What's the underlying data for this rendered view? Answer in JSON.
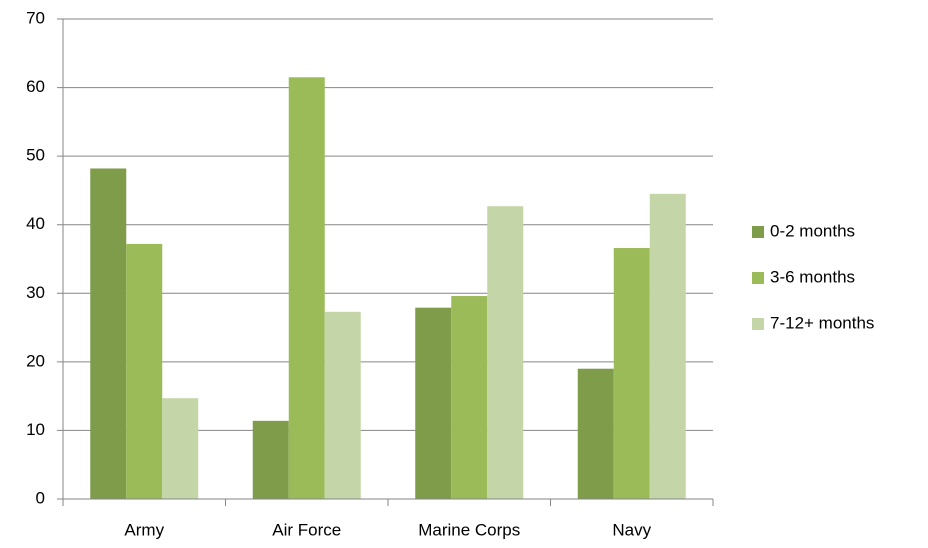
{
  "chart_data": {
    "type": "bar",
    "categories": [
      "Army",
      "Air Force",
      "Marine Corps",
      "Navy"
    ],
    "series": [
      {
        "name": "0-2 months",
        "color": "#7f9c4b",
        "values": [
          48.2,
          11.4,
          27.9,
          19.0
        ]
      },
      {
        "name": "3-6 months",
        "color": "#9bbb59",
        "values": [
          37.2,
          61.5,
          29.6,
          36.6
        ]
      },
      {
        "name": "7-12+ months",
        "color": "#c4d6a8",
        "values": [
          14.7,
          27.3,
          42.7,
          44.5
        ]
      }
    ],
    "ylim": [
      0,
      70
    ],
    "yticks": [
      0,
      10,
      20,
      30,
      40,
      50,
      60,
      70
    ],
    "grid": true,
    "legend": "right"
  }
}
